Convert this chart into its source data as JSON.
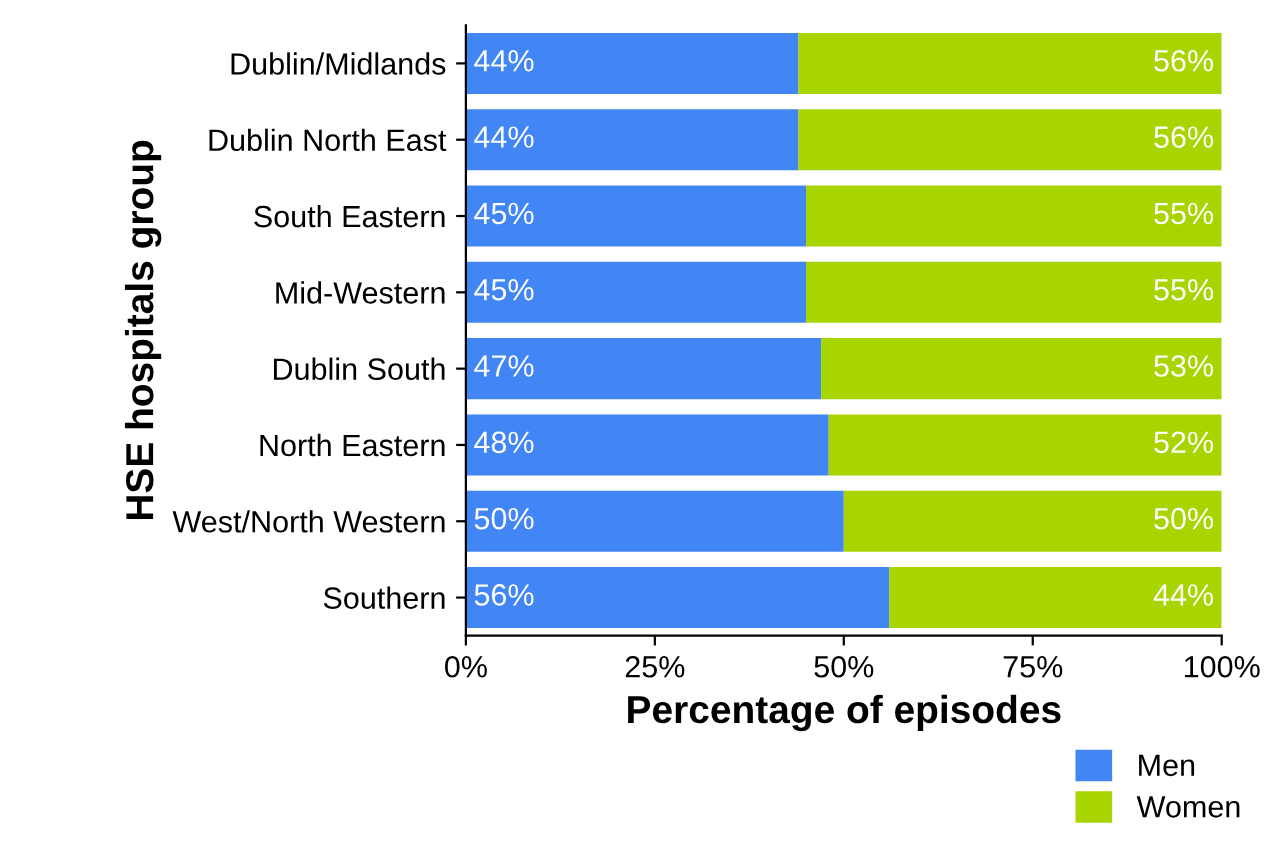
{
  "chart_data": {
    "type": "bar",
    "orientation": "horizontal",
    "stacked": true,
    "xlabel": "Percentage of episodes",
    "ylabel": "HSE hospitals group",
    "categories": [
      "Dublin/Midlands",
      "Dublin North East",
      "South Eastern",
      "Mid-Western",
      "Dublin South",
      "North Eastern",
      "West/North Western",
      "Southern"
    ],
    "series": [
      {
        "name": "Men",
        "color": "#4285f4",
        "values": [
          44,
          44,
          45,
          45,
          47,
          48,
          50,
          56
        ],
        "value_labels": [
          "44%",
          "44%",
          "45%",
          "45%",
          "47%",
          "48%",
          "50%",
          "56%"
        ]
      },
      {
        "name": "Women",
        "color": "#a8d400",
        "values": [
          56,
          56,
          55,
          55,
          53,
          52,
          50,
          44
        ],
        "value_labels": [
          "56%",
          "56%",
          "55%",
          "55%",
          "53%",
          "52%",
          "50%",
          "44%"
        ]
      }
    ],
    "xlim": [
      0,
      100
    ],
    "xticks": [
      {
        "value": 0,
        "label": "0%"
      },
      {
        "value": 25,
        "label": "25%"
      },
      {
        "value": 50,
        "label": "50%"
      },
      {
        "value": 75,
        "label": "75%"
      },
      {
        "value": 100,
        "label": "100%"
      }
    ],
    "grid": false,
    "legend": "bottom right"
  }
}
